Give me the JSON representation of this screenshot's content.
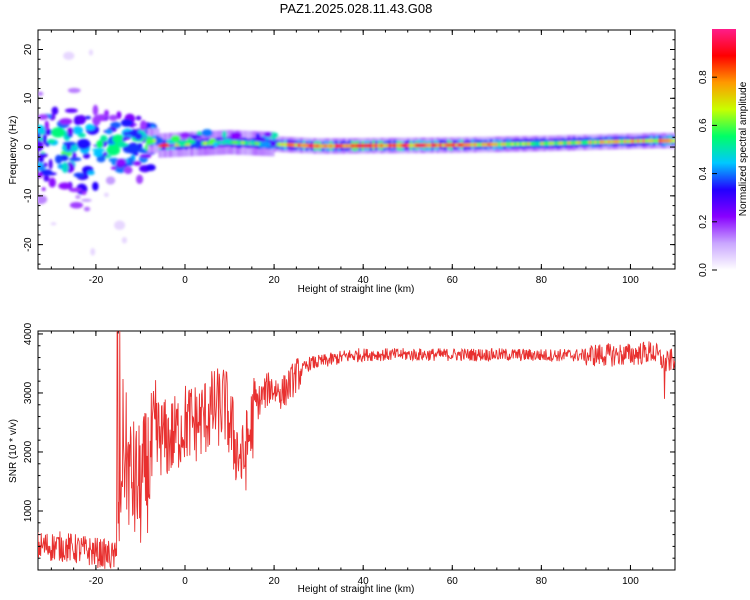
{
  "title": "PAZ1.2025.028.11.43.G08",
  "chart_data": [
    {
      "type": "heatmap",
      "xlabel": "Height of straight line (km)",
      "ylabel": "Frequency (Hz)",
      "xlim": [
        -33,
        110
      ],
      "ylim": [
        -25,
        24
      ],
      "xticks": [
        -20,
        0,
        20,
        40,
        60,
        80,
        100
      ],
      "yticks": [
        -20,
        -10,
        0,
        10,
        20
      ],
      "colorbar": {
        "label": "Normalized spectral amplitude",
        "range": [
          0,
          1
        ],
        "ticks": [
          0.0,
          0.2,
          0.4,
          0.6,
          0.8
        ],
        "tick_labels": [
          "0.0",
          "0.2",
          "0.4",
          "0.6",
          "0.8"
        ],
        "colors": [
          "#ffffff",
          "#c9a6ff",
          "#8800ff",
          "#2200ff",
          "#00c8ff",
          "#00ff66",
          "#c8ff00",
          "#ff9900",
          "#ff0000",
          "#ff1d8a"
        ]
      },
      "ridge": {
        "description_points": [
          {
            "x": -6,
            "freq": 0.3,
            "amp": 0.9
          },
          {
            "x": 10,
            "freq": 1.0,
            "amp": 0.6
          },
          {
            "x": 30,
            "freq": 0.2,
            "amp": 1.0
          },
          {
            "x": 60,
            "freq": 0.4,
            "amp": 0.95
          },
          {
            "x": 80,
            "freq": 0.7,
            "amp": 0.7
          },
          {
            "x": 105,
            "freq": 1.3,
            "amp": 0.85
          }
        ]
      },
      "noise_region": {
        "x_range": [
          -33,
          -7
        ],
        "freq_range": [
          -23,
          23
        ]
      }
    },
    {
      "type": "line",
      "xlabel": "Height of straight line (km)",
      "ylabel": "SNR (10 * v/v)",
      "xlim": [
        -33,
        110
      ],
      "ylim": [
        0,
        4050
      ],
      "xticks": [
        -20,
        0,
        20,
        40,
        60,
        80,
        100
      ],
      "yticks": [
        1000,
        2000,
        3000,
        4000
      ],
      "color": "#e8302f",
      "series": [
        {
          "x": [
            -33,
            -28,
            -24,
            -20,
            -17,
            -15,
            -14.5,
            -14,
            -12,
            -10,
            -8,
            -6,
            -4,
            -2,
            0,
            3,
            6,
            9,
            11,
            13,
            16,
            19,
            22,
            25,
            28,
            32,
            36,
            40,
            50,
            60,
            70,
            80,
            90,
            100,
            105,
            108,
            110
          ],
          "y": [
            400,
            400,
            350,
            300,
            250,
            200,
            1500,
            2200,
            1500,
            1400,
            1800,
            2300,
            2200,
            2300,
            2500,
            2500,
            2700,
            2800,
            2200,
            1800,
            2800,
            3100,
            3000,
            3300,
            3500,
            3550,
            3620,
            3650,
            3650,
            3650,
            3650,
            3640,
            3640,
            3650,
            3700,
            3500,
            3600
          ]
        }
      ]
    }
  ]
}
